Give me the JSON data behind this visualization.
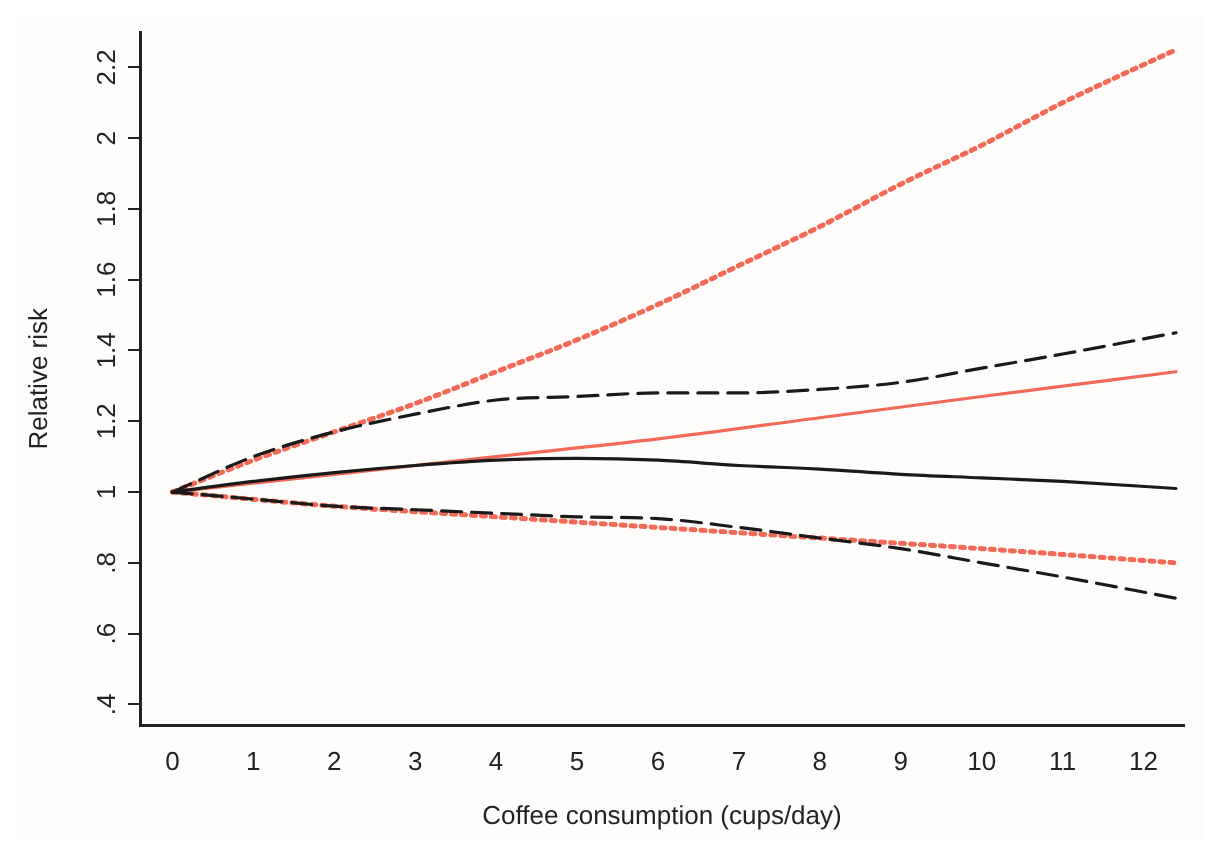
{
  "chart_data": {
    "type": "line",
    "xlabel": "Coffee consumption (cups/day)",
    "ylabel": "Relative risk",
    "xlim": [
      -0.4,
      12.5
    ],
    "ylim": [
      0.34,
      2.3
    ],
    "xticks": [
      0,
      1,
      2,
      3,
      4,
      5,
      6,
      7,
      8,
      9,
      10,
      11,
      12
    ],
    "yticks": [
      {
        "value": 0.4,
        "label": ".4"
      },
      {
        "value": 0.6,
        "label": ".6"
      },
      {
        "value": 0.8,
        "label": ".8"
      },
      1,
      1.2,
      1.4,
      1.6,
      1.8,
      2,
      2.2
    ],
    "grid": false,
    "legend": false,
    "marker": "none",
    "series": [
      {
        "color": "#f26a55",
        "line_style": "dotted",
        "x": [
          0,
          1,
          2,
          3,
          4,
          5,
          6,
          7,
          8,
          9,
          10,
          11,
          12.4
        ],
        "values": [
          1,
          1.09,
          1.17,
          1.25,
          1.34,
          1.43,
          1.53,
          1.64,
          1.75,
          1.87,
          1.98,
          2.1,
          2.25
        ]
      },
      {
        "color": "#f26a55",
        "line_style": "solid",
        "x": [
          0,
          2,
          4,
          6,
          8,
          10,
          12.4
        ],
        "values": [
          1,
          1.05,
          1.1,
          1.15,
          1.21,
          1.27,
          1.34
        ]
      },
      {
        "color": "#f26a55",
        "line_style": "dotted",
        "x": [
          0,
          2,
          4,
          6,
          8,
          10,
          12.4
        ],
        "values": [
          1,
          0.96,
          0.93,
          0.9,
          0.87,
          0.84,
          0.8
        ]
      },
      {
        "color": "#1a1a1a",
        "line_style": "solid",
        "x": [
          0,
          1,
          2,
          3,
          4,
          5,
          6,
          7,
          8,
          9,
          10,
          11,
          12.4
        ],
        "values": [
          1,
          1.03,
          1.055,
          1.075,
          1.09,
          1.095,
          1.09,
          1.075,
          1.065,
          1.05,
          1.04,
          1.03,
          1.01
        ]
      },
      {
        "color": "#1a1a1a",
        "line_style": "dashed",
        "x": [
          0,
          1,
          2,
          3,
          4,
          5,
          6,
          7,
          8,
          9,
          10,
          11,
          12.4
        ],
        "values": [
          1,
          1.1,
          1.17,
          1.22,
          1.26,
          1.27,
          1.28,
          1.28,
          1.29,
          1.31,
          1.35,
          1.39,
          1.45
        ]
      },
      {
        "color": "#1a1a1a",
        "line_style": "dashed",
        "x": [
          0,
          1,
          2,
          3,
          4,
          5,
          6,
          7,
          8,
          9,
          10,
          11,
          12.4
        ],
        "values": [
          1,
          0.98,
          0.96,
          0.95,
          0.94,
          0.93,
          0.925,
          0.9,
          0.87,
          0.84,
          0.8,
          0.76,
          0.7
        ]
      }
    ]
  }
}
